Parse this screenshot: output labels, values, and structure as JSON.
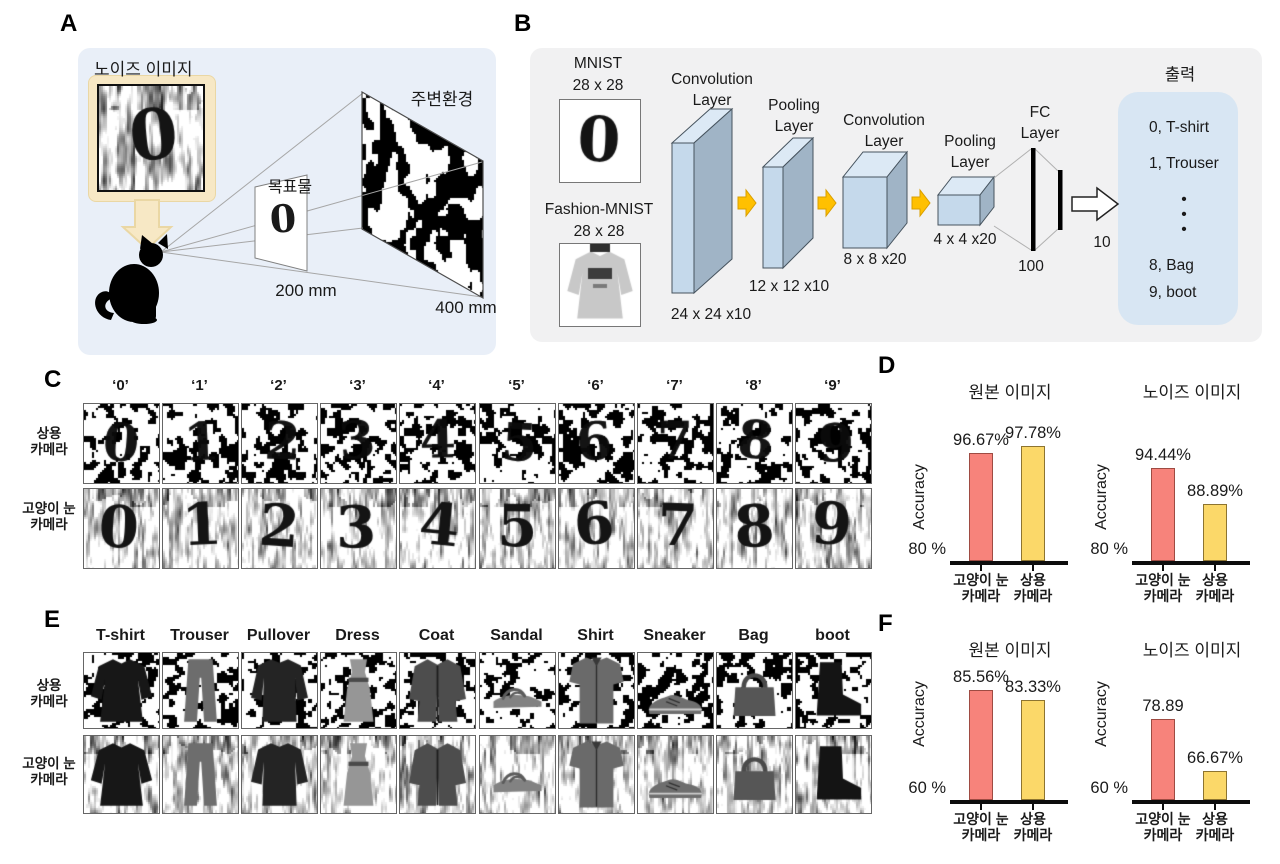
{
  "colors": {
    "panel_a_bg": "#E9EFF8",
    "panel_b_bg": "#F1F1F2",
    "output_box_bg": "#D8E6F3",
    "cream": "#F7E8C5",
    "cream_border": "#EAD7A4",
    "box_front": "#C5D9EB",
    "box_top": "#DCE9F5",
    "box_side": "#A0B4C6",
    "box_stroke": "#46535E",
    "arrow_orange": "#FFC000",
    "arrow_orange_border": "#D99E00",
    "bar_pink": "#F7837B",
    "bar_pink_border": "#9E4B42",
    "bar_yellow": "#FBD869",
    "bar_yellow_border": "#8D7430"
  },
  "panels": {
    "A": {
      "label": "A",
      "noise_image_label": "노이즈 이미지",
      "target_label": "목표물",
      "target_digit": "0",
      "environment_label": "주변환경",
      "distance_near": "200 mm",
      "distance_far": "400 mm"
    },
    "B": {
      "label": "B",
      "mnist_title": "MNIST",
      "mnist_size": "28 x 28",
      "fashion_title": "Fashion-MNIST",
      "fashion_size": "28 x 28",
      "conv1_label": "Convolution\nLayer",
      "pool1_label": "Pooling\nLayer",
      "conv2_label": "Convolution\nLayer",
      "pool2_label": "Pooling\nLayer",
      "fc_label": "FC\nLayer",
      "dim1": "24 x 24 x10",
      "dim2": "12 x 12 x10",
      "dim3": "8 x 8 x20",
      "dim4": "4 x 4 x20",
      "fc_n1": "100",
      "fc_n2": "10",
      "output_title": "출력",
      "output_ellipsis": "•\n•\n•",
      "output_items": [
        "0, T-shirt",
        "1, Trouser",
        "8, Bag",
        "9, boot"
      ]
    },
    "C": {
      "label": "C",
      "columns": [
        {
          "label": "‘0’",
          "digit": "0"
        },
        {
          "label": "‘1’",
          "digit": "1"
        },
        {
          "label": "‘2’",
          "digit": "2"
        },
        {
          "label": "‘3’",
          "digit": "3"
        },
        {
          "label": "‘4’",
          "digit": "4"
        },
        {
          "label": "‘5’",
          "digit": "5"
        },
        {
          "label": "‘6’",
          "digit": "6"
        },
        {
          "label": "‘7’",
          "digit": "7"
        },
        {
          "label": "‘8’",
          "digit": "8"
        },
        {
          "label": "‘9’",
          "digit": "9"
        }
      ],
      "rows": [
        {
          "line1": "상용",
          "line2": "카메라"
        },
        {
          "line1": "고양이 눈",
          "line2": "카메라"
        }
      ]
    },
    "D": {
      "label": "D"
    },
    "E": {
      "label": "E",
      "columns": [
        {
          "label": "T-shirt",
          "id": "tshirt"
        },
        {
          "label": "Trouser",
          "id": "trouser"
        },
        {
          "label": "Pullover",
          "id": "pullover"
        },
        {
          "label": "Dress",
          "id": "dress"
        },
        {
          "label": "Coat",
          "id": "coat"
        },
        {
          "label": "Sandal",
          "id": "sandal"
        },
        {
          "label": "Shirt",
          "id": "shirt"
        },
        {
          "label": "Sneaker",
          "id": "sneaker"
        },
        {
          "label": "Bag",
          "id": "bag"
        },
        {
          "label": "boot",
          "id": "boot"
        }
      ],
      "rows": [
        {
          "line1": "상용",
          "line2": "카메라"
        },
        {
          "line1": "고양이 눈",
          "line2": "카메라"
        }
      ]
    },
    "F": {
      "label": "F"
    }
  },
  "chart_data": [
    {
      "id": "d_original",
      "type": "bar",
      "panel": "D",
      "title": "원본 이미지",
      "ylabel": "Accuracy",
      "baseline_label": "80 %",
      "ymin": 80,
      "ymax": 100,
      "categories": [
        "고양이 눈 카메라",
        "상용 카메라"
      ],
      "tick_lines": [
        [
          "고양이 눈",
          "카메라"
        ],
        [
          "상용",
          "카메라"
        ]
      ],
      "values": [
        96.67,
        97.78
      ],
      "value_labels": [
        "96.67%",
        "97.78%"
      ],
      "bar_colors": [
        "pink",
        "yellow"
      ],
      "legend": "none",
      "grid": false
    },
    {
      "id": "d_noise",
      "type": "bar",
      "panel": "D",
      "title": "노이즈 이미지",
      "ylabel": "Accuracy",
      "baseline_label": "80 %",
      "ymin": 80,
      "ymax": 100,
      "categories": [
        "고양이 눈 카메라",
        "상용 카메라"
      ],
      "tick_lines": [
        [
          "고양이 눈",
          "카메라"
        ],
        [
          "상용",
          "카메라"
        ]
      ],
      "values": [
        94.44,
        88.89
      ],
      "value_labels": [
        "94.44%",
        "88.89%"
      ],
      "bar_colors": [
        "pink",
        "yellow"
      ],
      "legend": "none",
      "grid": false
    },
    {
      "id": "f_original",
      "type": "bar",
      "panel": "F",
      "title": "원본 이미지",
      "ylabel": "Accuracy",
      "baseline_label": "60 %",
      "ymin": 60,
      "ymax": 100,
      "categories": [
        "고양이 눈 카메라",
        "상용 카메라"
      ],
      "tick_lines": [
        [
          "고양이 눈",
          "카메라"
        ],
        [
          "상용",
          "카메라"
        ]
      ],
      "values": [
        85.56,
        83.33
      ],
      "value_labels": [
        "85.56%",
        "83.33%"
      ],
      "bar_colors": [
        "pink",
        "yellow"
      ],
      "legend": "none",
      "grid": false
    },
    {
      "id": "f_noise",
      "type": "bar",
      "panel": "F",
      "title": "노이즈 이미지",
      "ylabel": "Accuracy",
      "baseline_label": "60 %",
      "ymin": 60,
      "ymax": 100,
      "categories": [
        "고양이 눈 카메라",
        "상용 카메라"
      ],
      "tick_lines": [
        [
          "고양이 눈",
          "카메라"
        ],
        [
          "상용",
          "카메라"
        ]
      ],
      "values": [
        78.89,
        66.67
      ],
      "value_labels": [
        "78.89",
        "66.67%"
      ],
      "bar_colors": [
        "pink",
        "yellow"
      ],
      "legend": "none",
      "grid": false
    }
  ]
}
